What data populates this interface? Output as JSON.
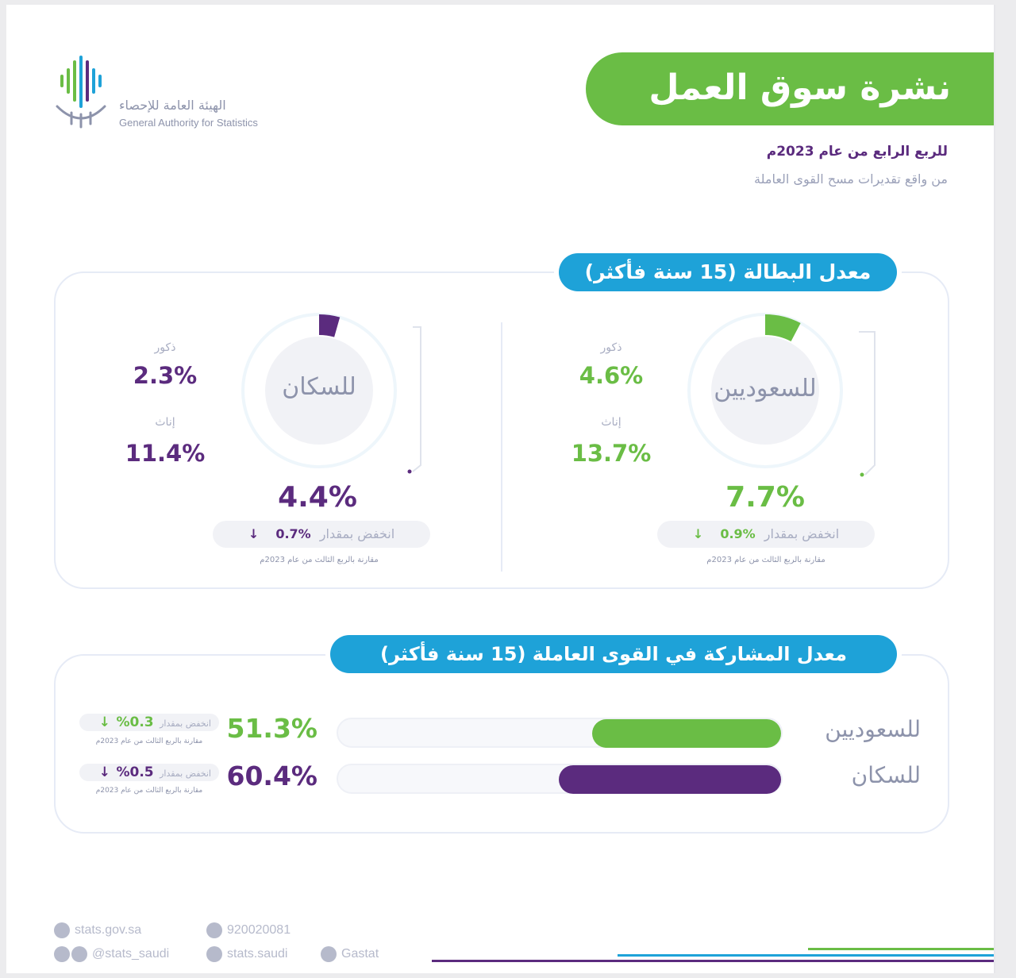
{
  "header": {
    "title": "نشرة سوق العمل",
    "period": "للربع الرابع من عام 2023م",
    "source": "من واقع تقديرات مسح القوى العاملة",
    "org_ar": "الهيئة العامة للإحصاء",
    "org_en": "General Authority for Statistics"
  },
  "colors": {
    "green": "#6abd45",
    "purple": "#5b2b7e",
    "blue": "#1ea2d8"
  },
  "unemployment": {
    "section_title": "معدل البطالة (15 سنة فأكثر)",
    "saudi": {
      "label": "للسعوديين",
      "male_label": "ذكور",
      "male_value": "4.6%",
      "female_label": "إناث",
      "female_value": "13.7%",
      "total_value": "7.7%",
      "change_label": "انخفض بمقدار",
      "change_value": "%0.9",
      "compare_note": "مقارنة بالربع الثالث من عام 2023م"
    },
    "population": {
      "label": "للسكان",
      "male_label": "ذكور",
      "male_value": "2.3%",
      "female_label": "إناث",
      "female_value": "11.4%",
      "total_value": "4.4%",
      "change_label": "انخفض بمقدار",
      "change_value": "%0.7",
      "compare_note": "مقارنة بالربع الثالث من عام 2023م"
    }
  },
  "participation": {
    "section_title": "معدل المشاركة في القوى العاملة (15 سنة فأكثر)",
    "saudi": {
      "label": "للسعوديين",
      "value": "51.3%",
      "change_label": "انخفض بمقدار",
      "change_value": "0.3%",
      "compare_note": "مقارنة بالربع الثالث من عام 2023م"
    },
    "population": {
      "label": "للسكان",
      "value": "60.4%",
      "change_label": "انخفض بمقدار",
      "change_value": "0.5%",
      "compare_note": "مقارنة بالربع الثالث من عام 2023م"
    }
  },
  "chart_data": [
    {
      "type": "pie",
      "categories": [
        "للسعوديين",
        "للسكان"
      ],
      "values": [
        7.7,
        4.4
      ],
      "title": "معدل البطالة (15 سنة فأكثر)",
      "unit": "%"
    },
    {
      "type": "bar",
      "categories": [
        "للسعوديين",
        "للسكان"
      ],
      "values": [
        51.3,
        60.4
      ],
      "title": "معدل المشاركة في القوى العاملة (15 سنة فأكثر)",
      "unit": "%",
      "ylim": [
        0,
        100
      ]
    }
  ],
  "footer": {
    "website": "stats.gov.sa",
    "phone": "920020081",
    "social_handle": "@stats_saudi",
    "facebook": "stats.saudi",
    "other": "Gastat"
  }
}
